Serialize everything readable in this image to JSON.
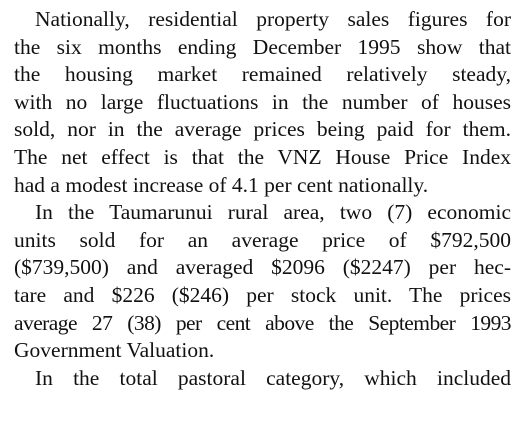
{
  "document": {
    "paragraphs": [
      {
        "lines": [
          "Nationally, residential property sales figures for",
          "the six months ending December 1995 show that",
          "the housing market remained relatively steady,",
          "with no large fluctuations in the number of houses",
          "sold, nor in the average prices being paid for them.",
          "The net effect is that the VNZ House Price Index",
          "had a modest increase of 4.1 per cent nationally."
        ]
      },
      {
        "lines": [
          "In the Taumarunui rural area, two (7) economic",
          "units sold for an average price of $792,500",
          "($739,500) and averaged $2096 ($2247) per hec-",
          "tare and $226 ($246) per stock unit. The prices",
          "average 27 (38) per cent above the September 1993",
          "Government Valuation."
        ]
      },
      {
        "lines": [
          "In the total pastoral category, which included"
        ]
      }
    ]
  }
}
